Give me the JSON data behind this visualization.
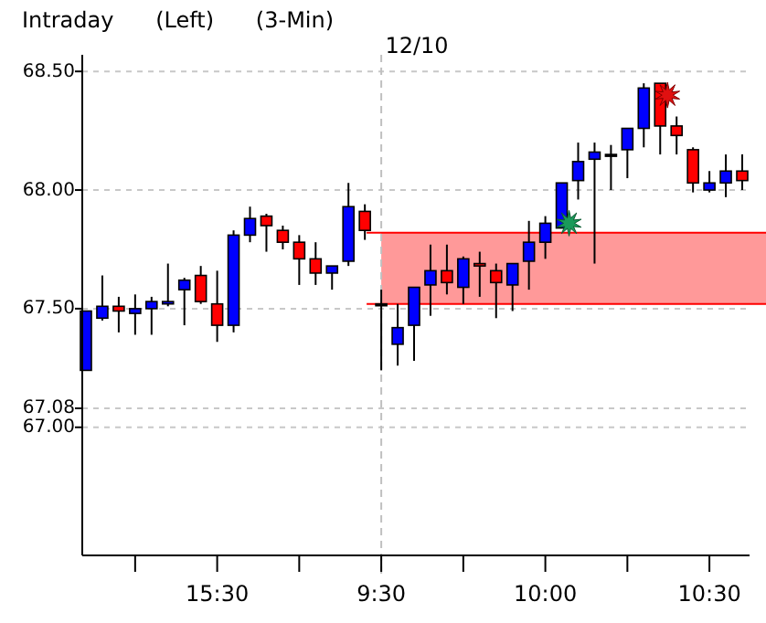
{
  "chart_data": {
    "type": "candlestick",
    "title": "Intraday      (Left)      (3-Min)",
    "subtitle": "12/10",
    "categories": [
      null,
      null,
      null,
      null,
      null,
      null,
      null,
      null,
      "15:30",
      null,
      null,
      null,
      null,
      null,
      null,
      null,
      null,
      null,
      "9:30",
      null,
      null,
      null,
      null,
      null,
      null,
      null,
      null,
      null,
      "10:00",
      null,
      null,
      null,
      null,
      null,
      null,
      null,
      null,
      null,
      "10:30",
      null,
      null
    ],
    "ohlc": [
      [
        67.24,
        67.49,
        67.24,
        67.49
      ],
      [
        67.46,
        67.64,
        67.45,
        67.51
      ],
      [
        67.51,
        67.55,
        67.4,
        67.49
      ],
      [
        67.48,
        67.56,
        67.39,
        67.5
      ],
      [
        67.5,
        67.55,
        67.39,
        67.53
      ],
      [
        67.52,
        67.69,
        67.51,
        67.53
      ],
      [
        67.58,
        67.63,
        67.43,
        67.62
      ],
      [
        67.64,
        67.68,
        67.52,
        67.53
      ],
      [
        67.52,
        67.66,
        67.36,
        67.43
      ],
      [
        67.43,
        67.83,
        67.4,
        67.81
      ],
      [
        67.81,
        67.93,
        67.78,
        67.88
      ],
      [
        67.89,
        67.9,
        67.74,
        67.85
      ],
      [
        67.83,
        67.85,
        67.75,
        67.78
      ],
      [
        67.78,
        67.81,
        67.6,
        67.71
      ],
      [
        67.71,
        67.78,
        67.6,
        67.65
      ],
      [
        67.65,
        67.68,
        67.58,
        67.68
      ],
      [
        67.7,
        68.03,
        67.68,
        67.93
      ],
      [
        67.91,
        67.94,
        67.79,
        67.83
      ],
      [
        67.52,
        67.58,
        67.24,
        67.52
      ],
      [
        67.35,
        67.52,
        67.26,
        67.42
      ],
      [
        67.43,
        67.59,
        67.28,
        67.59
      ],
      [
        67.6,
        67.77,
        67.47,
        67.66
      ],
      [
        67.66,
        67.77,
        67.56,
        67.61
      ],
      [
        67.59,
        67.72,
        67.52,
        67.71
      ],
      [
        67.69,
        67.74,
        67.55,
        67.68
      ],
      [
        67.66,
        67.69,
        67.46,
        67.61
      ],
      [
        67.6,
        67.69,
        67.49,
        67.69
      ],
      [
        67.7,
        67.87,
        67.58,
        67.78
      ],
      [
        67.78,
        67.89,
        67.71,
        67.86
      ],
      [
        67.84,
        68.03,
        67.84,
        68.03
      ],
      [
        68.04,
        68.2,
        67.96,
        68.12
      ],
      [
        68.13,
        68.2,
        67.69,
        68.16
      ],
      [
        68.15,
        68.19,
        68.0,
        68.15
      ],
      [
        68.17,
        68.26,
        68.05,
        68.26
      ],
      [
        68.26,
        68.45,
        68.18,
        68.43
      ],
      [
        68.45,
        68.45,
        68.15,
        68.27
      ],
      [
        68.27,
        68.31,
        68.15,
        68.23
      ],
      [
        68.17,
        68.18,
        67.99,
        68.03
      ],
      [
        68.0,
        68.08,
        67.99,
        68.03
      ],
      [
        68.03,
        68.15,
        67.97,
        68.08
      ],
      [
        68.08,
        68.15,
        68.0,
        68.04
      ]
    ],
    "colors": [
      "#0000ff",
      "#0000ff",
      "#ff0000",
      "#0000ff",
      "#0000ff",
      "#0000ff",
      "#0000ff",
      "#ff0000",
      "#ff0000",
      "#0000ff",
      "#0000ff",
      "#ff0000",
      "#ff0000",
      "#ff0000",
      "#ff0000",
      "#0000ff",
      "#0000ff",
      "#ff0000",
      "#000000",
      "#0000ff",
      "#0000ff",
      "#0000ff",
      "#ff0000",
      "#0000ff",
      "#ff0000",
      "#ff0000",
      "#0000ff",
      "#0000ff",
      "#0000ff",
      "#0000ff",
      "#0000ff",
      "#0000ff",
      "#000000",
      "#0000ff",
      "#0000ff",
      "#ff0000",
      "#ff0000",
      "#ff0000",
      "#0000ff",
      "#0000ff",
      "#ff0000"
    ],
    "ylim": [
      66.46,
      68.57
    ],
    "yticks": [
      {
        "value": 68.5,
        "label": "68.50"
      },
      {
        "value": 68,
        "label": "68.00"
      },
      {
        "value": 67.5,
        "label": "67.50"
      },
      {
        "value": 67.08,
        "label": "67.08"
      },
      {
        "value": 67,
        "label": "67.00"
      }
    ],
    "grid": "y",
    "ref_lines": [
      {
        "axis": "x",
        "value": "9:30",
        "color": "#c0c0c0",
        "line_style": "dashed"
      },
      {
        "axis": "y",
        "value": 67.82,
        "color": "#ff0000",
        "line_style": "solid"
      },
      {
        "axis": "y",
        "value": 67.52,
        "color": "#ff0000",
        "line_style": "solid"
      }
    ],
    "bands": [
      {
        "axis": "y",
        "from": 67.52,
        "to": 67.82,
        "color": "#ff9999"
      }
    ]
  }
}
